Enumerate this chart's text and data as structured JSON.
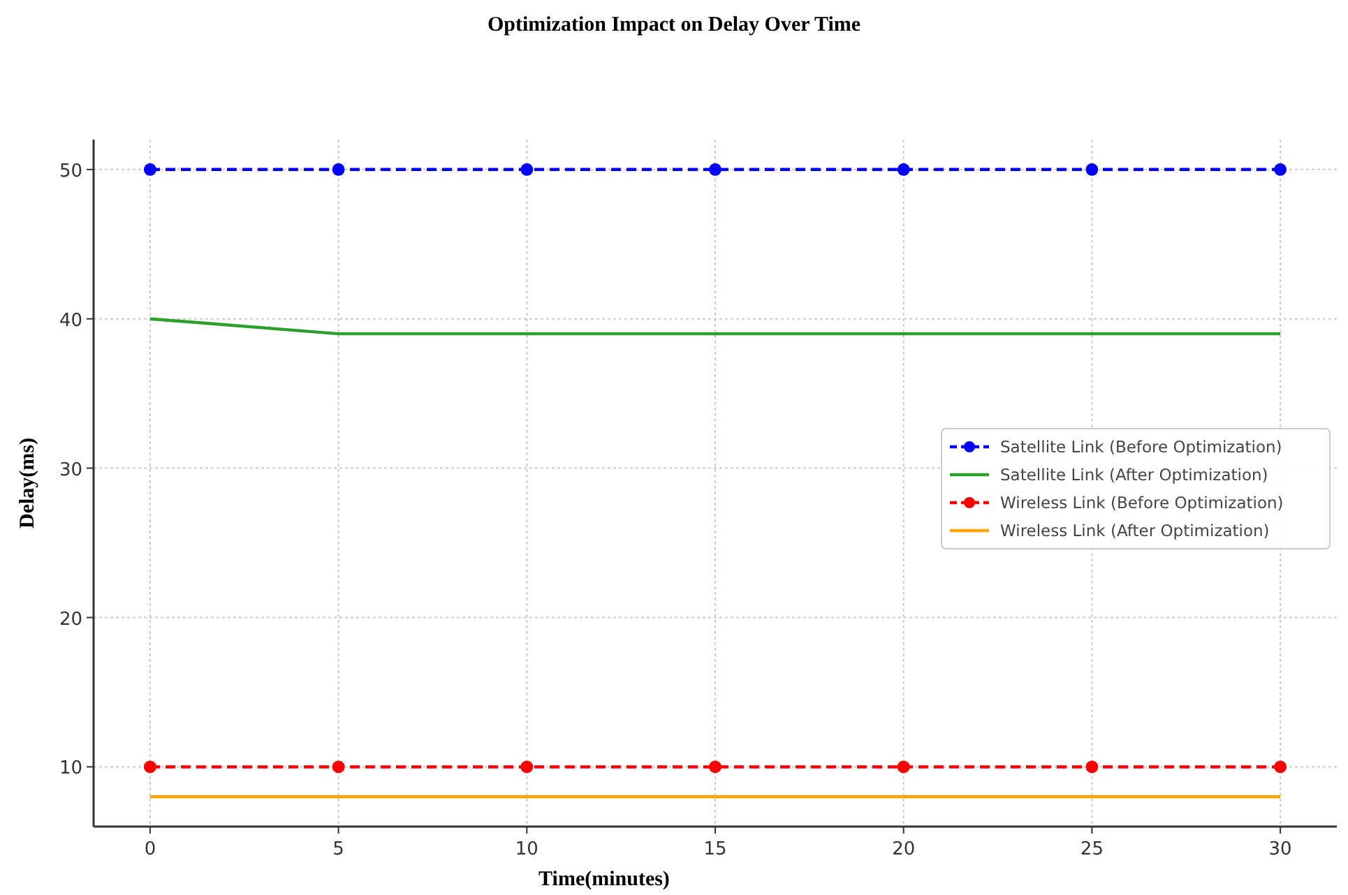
{
  "chart_data": {
    "type": "line",
    "title": "Optimization Impact on Delay Over Time",
    "xlabel": "Time(minutes)",
    "ylabel": "Delay(ms)",
    "x": [
      0,
      5,
      10,
      15,
      20,
      25,
      30
    ],
    "series": [
      {
        "name": "Satellite Link (Before Optimization)",
        "color": "#0000ff",
        "values": [
          50,
          50,
          50,
          50,
          50,
          50,
          50
        ],
        "marker": "circle",
        "line_style": "dashed"
      },
      {
        "name": "Satellite Link (After Optimization)",
        "color": "#2ca02c",
        "values": [
          40,
          39,
          39,
          39,
          39,
          39,
          39
        ],
        "marker": "none",
        "line_style": "solid"
      },
      {
        "name": "Wireless Link (Before Optimization)",
        "color": "#ff0000",
        "values": [
          10,
          10,
          10,
          10,
          10,
          10,
          10
        ],
        "marker": "circle",
        "line_style": "dashed"
      },
      {
        "name": "Wireless Link (After Optimization)",
        "color": "#ffa500",
        "values": [
          8,
          8,
          8,
          8,
          8,
          8,
          8
        ],
        "marker": "none",
        "line_style": "solid"
      }
    ],
    "xlim": [
      -1.5,
      31.5
    ],
    "ylim": [
      6,
      52
    ],
    "xticks": [
      0,
      5,
      10,
      15,
      20,
      25,
      30
    ],
    "yticks": [
      10,
      20,
      30,
      40,
      50
    ],
    "grid": true,
    "legend": "right"
  }
}
